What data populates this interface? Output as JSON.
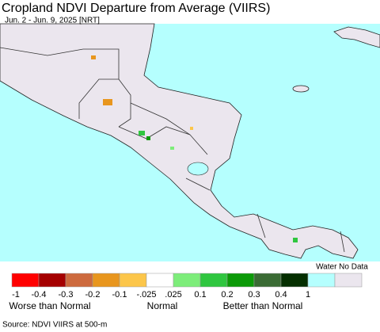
{
  "title": "Cropland NDVI Departure from Average (VIIRS)",
  "subtitle": "Jun. 2 - Jun. 9, 2025 [NRT]",
  "legend": {
    "colors": [
      "#ff0000",
      "#a50000",
      "#cd6a3e",
      "#e8961e",
      "#fcc64a",
      "#ffffff",
      "#7ded7a",
      "#2fc63f",
      "#0c9a08",
      "#3a6b34",
      "#052f00",
      "#b5fffe",
      "#ebe6ee"
    ],
    "tick_labels": [
      "-1",
      "-0.4",
      "-0.3",
      "-0.2",
      "-0.1",
      "-.025",
      ".025",
      "0.1",
      "0.2",
      "0.3",
      "0.4",
      "1"
    ],
    "extra_label": "Water No Data",
    "group_labels": [
      "Worse than Normal",
      "Normal",
      "Better than Normal"
    ]
  },
  "source": "Source: NDVI VIIRS at 500-m"
}
